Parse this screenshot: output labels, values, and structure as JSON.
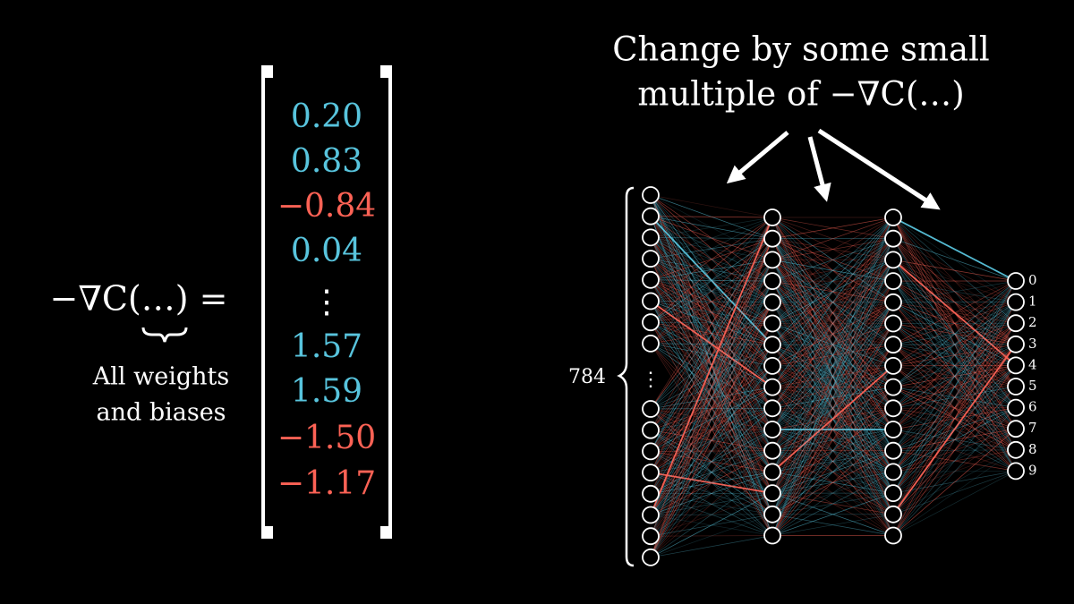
{
  "expression": {
    "lhs": "−∇C(…) =",
    "brace_label_lines": [
      "All weights",
      "and biases"
    ]
  },
  "vector": {
    "entries": [
      {
        "text": "0.20",
        "color": "#58c4dd"
      },
      {
        "text": "0.83",
        "color": "#58c4dd"
      },
      {
        "text": "−0.84",
        "color": "#fc6255"
      },
      {
        "text": "0.04",
        "color": "#58c4dd"
      },
      {
        "text": "⋮",
        "color": "#ffffff"
      },
      {
        "text": "1.57",
        "color": "#58c4dd"
      },
      {
        "text": "1.59",
        "color": "#58c4dd"
      },
      {
        "text": "−1.50",
        "color": "#fc6255"
      },
      {
        "text": "−1.17",
        "color": "#fc6255"
      }
    ]
  },
  "caption": {
    "lines": [
      "Change by some small",
      "multiple of −∇C(…)"
    ]
  },
  "network": {
    "input_size_label": "784",
    "output_labels": [
      0,
      1,
      2,
      3,
      4,
      5,
      6,
      7,
      8,
      9
    ]
  }
}
